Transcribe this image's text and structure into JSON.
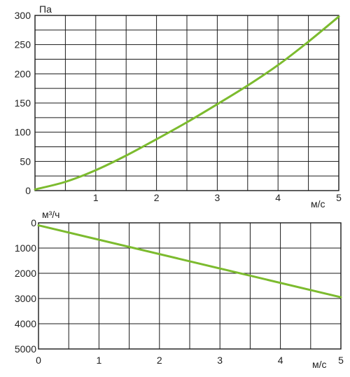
{
  "chart_data": [
    {
      "type": "line",
      "ylabel": "Па",
      "xlabel": "м/с",
      "xlim": [
        0,
        5
      ],
      "ylim": [
        0,
        300
      ],
      "x_ticks": [
        "1",
        "2",
        "3",
        "4",
        "5"
      ],
      "y_ticks": [
        "0",
        "50",
        "100",
        "150",
        "200",
        "250",
        "300"
      ],
      "grid": true,
      "series": [
        {
          "color": "#7cbb2e",
          "x": [
            0,
            0.5,
            1,
            1.5,
            2,
            2.5,
            3,
            3.5,
            4,
            4.5,
            5
          ],
          "y": [
            2,
            15,
            35,
            60,
            88,
            117,
            148,
            180,
            215,
            255,
            298
          ]
        }
      ]
    },
    {
      "type": "line",
      "ylabel": "м³/ч",
      "xlabel": "м/с",
      "xlim": [
        0,
        5
      ],
      "ylim": [
        5000,
        0
      ],
      "x_ticks": [
        "0",
        "1",
        "2",
        "3",
        "4",
        "5"
      ],
      "y_ticks": [
        "0",
        "1000",
        "2000",
        "3000",
        "4000",
        "5000"
      ],
      "grid": true,
      "series": [
        {
          "color": "#7cbb2e",
          "x": [
            0,
            5
          ],
          "y": [
            100,
            2950
          ]
        }
      ]
    }
  ]
}
